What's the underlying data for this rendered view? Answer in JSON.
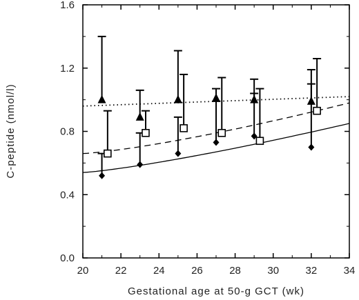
{
  "chart_data": {
    "type": "scatter",
    "title": "",
    "xlabel": "Gestational age at 50-g GCT (wk)",
    "ylabel": "C-peptide (nmol/l)",
    "xlim": [
      20,
      34
    ],
    "ylim": [
      0.0,
      1.6
    ],
    "x_ticks": [
      20,
      22,
      24,
      26,
      28,
      30,
      32,
      34
    ],
    "y_ticks": [
      "0.0",
      "0.4",
      "0.8",
      "1.2",
      "1.6"
    ],
    "grid": false,
    "legend": "none",
    "series": [
      {
        "marker": "triangle-filled",
        "x": [
          21,
          23,
          25,
          27,
          29,
          32
        ],
        "y": [
          1.0,
          0.89,
          1.0,
          1.01,
          1.0,
          0.99
        ],
        "error_upper": [
          1.4,
          1.06,
          1.31,
          1.07,
          1.13,
          1.19
        ]
      },
      {
        "marker": "square-open",
        "x": [
          21.3,
          23.3,
          25.3,
          27.3,
          29.3,
          32.3
        ],
        "y": [
          0.66,
          0.79,
          0.82,
          0.79,
          0.74,
          0.93
        ],
        "error_upper": [
          0.93,
          0.93,
          1.16,
          1.14,
          1.07,
          1.26
        ]
      },
      {
        "marker": "diamond-filled",
        "x": [
          21,
          23,
          25,
          27,
          29,
          32
        ],
        "y": [
          0.52,
          0.59,
          0.66,
          0.73,
          0.77,
          0.7
        ],
        "error_upper": [
          0.66,
          0.79,
          0.89,
          0.99,
          1.04,
          1.1
        ]
      }
    ],
    "fit_lines": [
      {
        "style": "dotted",
        "x": [
          20,
          34
        ],
        "y": [
          0.96,
          1.02
        ]
      },
      {
        "style": "dashed",
        "x": [
          20,
          34
        ],
        "y": [
          0.66,
          0.98
        ],
        "exp": 1.3
      },
      {
        "style": "solid",
        "x": [
          20,
          34
        ],
        "y": [
          0.54,
          0.85
        ],
        "exp": 1.25
      }
    ]
  }
}
